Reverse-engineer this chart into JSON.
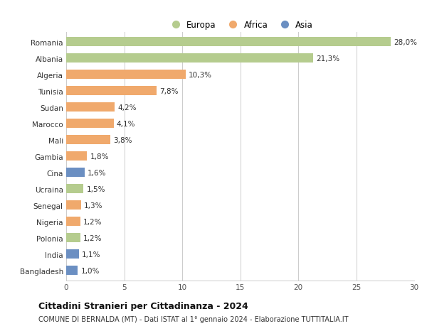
{
  "countries": [
    "Romania",
    "Albania",
    "Algeria",
    "Tunisia",
    "Sudan",
    "Marocco",
    "Mali",
    "Gambia",
    "Cina",
    "Ucraina",
    "Senegal",
    "Nigeria",
    "Polonia",
    "India",
    "Bangladesh"
  ],
  "values": [
    28.0,
    21.3,
    10.3,
    7.8,
    4.2,
    4.1,
    3.8,
    1.8,
    1.6,
    1.5,
    1.3,
    1.2,
    1.2,
    1.1,
    1.0
  ],
  "labels": [
    "28,0%",
    "21,3%",
    "10,3%",
    "7,8%",
    "4,2%",
    "4,1%",
    "3,8%",
    "1,8%",
    "1,6%",
    "1,5%",
    "1,3%",
    "1,2%",
    "1,2%",
    "1,1%",
    "1,0%"
  ],
  "continents": [
    "Europa",
    "Europa",
    "Africa",
    "Africa",
    "Africa",
    "Africa",
    "Africa",
    "Africa",
    "Asia",
    "Europa",
    "Africa",
    "Africa",
    "Europa",
    "Asia",
    "Asia"
  ],
  "colors": {
    "Europa": "#b5cc8e",
    "Africa": "#f0a96c",
    "Asia": "#6b8fc2"
  },
  "xlim": [
    0,
    30
  ],
  "xticks": [
    0,
    5,
    10,
    15,
    20,
    25,
    30
  ],
  "title1": "Cittadini Stranieri per Cittadinanza - 2024",
  "title2": "COMUNE DI BERNALDA (MT) - Dati ISTAT al 1° gennaio 2024 - Elaborazione TUTTITALIA.IT",
  "bg_color": "#ffffff",
  "grid_color": "#cccccc",
  "bar_height": 0.55,
  "label_fontsize": 7.5,
  "tick_fontsize": 7.5,
  "legend_fontsize": 8.5,
  "title_fontsize": 9.0,
  "subtitle_fontsize": 7.0
}
